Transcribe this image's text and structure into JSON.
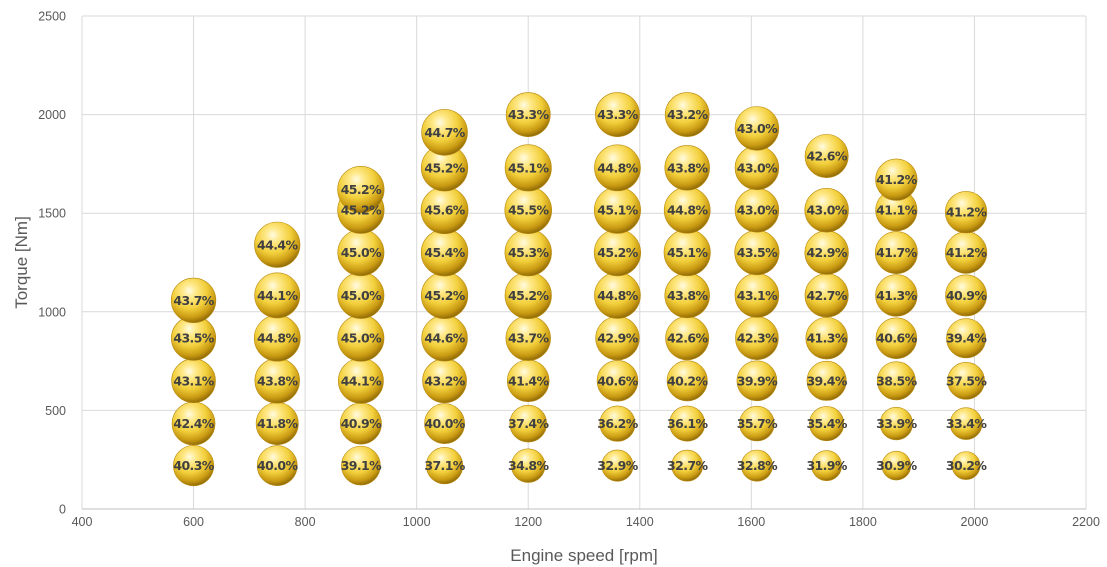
{
  "chart_data": {
    "type": "scatter",
    "title": "",
    "xlabel": "Engine speed [rpm]",
    "ylabel": "Torque [Nm]",
    "xlim": [
      400,
      2200
    ],
    "ylim": [
      0,
      2500
    ],
    "xticks": [
      "400",
      "600",
      "800",
      "1000",
      "1200",
      "1400",
      "1600",
      "1800",
      "2000",
      "2200"
    ],
    "yticks": [
      "0",
      "500",
      "1000",
      "1500",
      "2000",
      "2500"
    ],
    "grid": true,
    "legend": "none",
    "marker_color": "#f2cf3b",
    "points": [
      {
        "x": 600,
        "y": 220,
        "label": "40.3%",
        "value": 40.3
      },
      {
        "x": 600,
        "y": 433,
        "label": "42.4%",
        "value": 42.4
      },
      {
        "x": 600,
        "y": 650,
        "label": "43.1%",
        "value": 43.1
      },
      {
        "x": 600,
        "y": 866,
        "label": "43.5%",
        "value": 43.5
      },
      {
        "x": 600,
        "y": 1058,
        "label": "43.7%",
        "value": 43.7
      },
      {
        "x": 750,
        "y": 220,
        "label": "40.0%",
        "value": 40.0
      },
      {
        "x": 750,
        "y": 433,
        "label": "41.8%",
        "value": 41.8
      },
      {
        "x": 750,
        "y": 650,
        "label": "43.8%",
        "value": 43.8
      },
      {
        "x": 750,
        "y": 866,
        "label": "44.8%",
        "value": 44.8
      },
      {
        "x": 750,
        "y": 1083,
        "label": "44.1%",
        "value": 44.1
      },
      {
        "x": 750,
        "y": 1340,
        "label": "44.4%",
        "value": 44.4
      },
      {
        "x": 900,
        "y": 220,
        "label": "39.1%",
        "value": 39.1
      },
      {
        "x": 900,
        "y": 433,
        "label": "40.9%",
        "value": 40.9
      },
      {
        "x": 900,
        "y": 650,
        "label": "44.1%",
        "value": 44.1
      },
      {
        "x": 900,
        "y": 866,
        "label": "45.0%",
        "value": 45.0
      },
      {
        "x": 900,
        "y": 1083,
        "label": "45.0%",
        "value": 45.0
      },
      {
        "x": 900,
        "y": 1300,
        "label": "45.0%",
        "value": 45.0
      },
      {
        "x": 900,
        "y": 1515,
        "label": "45.2%",
        "value": 45.2
      },
      {
        "x": 900,
        "y": 1620,
        "label": "45.2%",
        "value": 45.2
      },
      {
        "x": 1050,
        "y": 220,
        "label": "37.1%",
        "value": 37.1
      },
      {
        "x": 1050,
        "y": 433,
        "label": "40.0%",
        "value": 40.0
      },
      {
        "x": 1050,
        "y": 650,
        "label": "43.2%",
        "value": 43.2
      },
      {
        "x": 1050,
        "y": 866,
        "label": "44.6%",
        "value": 44.6
      },
      {
        "x": 1050,
        "y": 1083,
        "label": "45.2%",
        "value": 45.2
      },
      {
        "x": 1050,
        "y": 1300,
        "label": "45.4%",
        "value": 45.4
      },
      {
        "x": 1050,
        "y": 1515,
        "label": "45.6%",
        "value": 45.6
      },
      {
        "x": 1050,
        "y": 1730,
        "label": "45.2%",
        "value": 45.2
      },
      {
        "x": 1050,
        "y": 1910,
        "label": "44.7%",
        "value": 44.7
      },
      {
        "x": 1200,
        "y": 220,
        "label": "34.8%",
        "value": 34.8
      },
      {
        "x": 1200,
        "y": 433,
        "label": "37.4%",
        "value": 37.4
      },
      {
        "x": 1200,
        "y": 650,
        "label": "41.4%",
        "value": 41.4
      },
      {
        "x": 1200,
        "y": 866,
        "label": "43.7%",
        "value": 43.7
      },
      {
        "x": 1200,
        "y": 1083,
        "label": "45.2%",
        "value": 45.2
      },
      {
        "x": 1200,
        "y": 1300,
        "label": "45.3%",
        "value": 45.3
      },
      {
        "x": 1200,
        "y": 1515,
        "label": "45.5%",
        "value": 45.5
      },
      {
        "x": 1200,
        "y": 1730,
        "label": "45.1%",
        "value": 45.1
      },
      {
        "x": 1200,
        "y": 2000,
        "label": "43.3%",
        "value": 43.3
      },
      {
        "x": 1360,
        "y": 220,
        "label": "32.9%",
        "value": 32.9
      },
      {
        "x": 1360,
        "y": 433,
        "label": "36.2%",
        "value": 36.2
      },
      {
        "x": 1360,
        "y": 650,
        "label": "40.6%",
        "value": 40.6
      },
      {
        "x": 1360,
        "y": 866,
        "label": "42.9%",
        "value": 42.9
      },
      {
        "x": 1360,
        "y": 1083,
        "label": "44.8%",
        "value": 44.8
      },
      {
        "x": 1360,
        "y": 1300,
        "label": "45.2%",
        "value": 45.2
      },
      {
        "x": 1360,
        "y": 1515,
        "label": "45.1%",
        "value": 45.1
      },
      {
        "x": 1360,
        "y": 1730,
        "label": "44.8%",
        "value": 44.8
      },
      {
        "x": 1360,
        "y": 2000,
        "label": "43.3%",
        "value": 43.3
      },
      {
        "x": 1485,
        "y": 220,
        "label": "32.7%",
        "value": 32.7
      },
      {
        "x": 1485,
        "y": 433,
        "label": "36.1%",
        "value": 36.1
      },
      {
        "x": 1485,
        "y": 650,
        "label": "40.2%",
        "value": 40.2
      },
      {
        "x": 1485,
        "y": 866,
        "label": "42.6%",
        "value": 42.6
      },
      {
        "x": 1485,
        "y": 1083,
        "label": "43.8%",
        "value": 43.8
      },
      {
        "x": 1485,
        "y": 1300,
        "label": "45.1%",
        "value": 45.1
      },
      {
        "x": 1485,
        "y": 1515,
        "label": "44.8%",
        "value": 44.8
      },
      {
        "x": 1485,
        "y": 1730,
        "label": "43.8%",
        "value": 43.8
      },
      {
        "x": 1485,
        "y": 2000,
        "label": "43.2%",
        "value": 43.2
      },
      {
        "x": 1610,
        "y": 220,
        "label": "32.8%",
        "value": 32.8
      },
      {
        "x": 1610,
        "y": 433,
        "label": "35.7%",
        "value": 35.7
      },
      {
        "x": 1610,
        "y": 650,
        "label": "39.9%",
        "value": 39.9
      },
      {
        "x": 1610,
        "y": 866,
        "label": "42.3%",
        "value": 42.3
      },
      {
        "x": 1610,
        "y": 1083,
        "label": "43.1%",
        "value": 43.1
      },
      {
        "x": 1610,
        "y": 1300,
        "label": "43.5%",
        "value": 43.5
      },
      {
        "x": 1610,
        "y": 1515,
        "label": "43.0%",
        "value": 43.0
      },
      {
        "x": 1610,
        "y": 1730,
        "label": "43.0%",
        "value": 43.0
      },
      {
        "x": 1610,
        "y": 1930,
        "label": "43.0%",
        "value": 43.0
      },
      {
        "x": 1735,
        "y": 220,
        "label": "31.9%",
        "value": 31.9
      },
      {
        "x": 1735,
        "y": 433,
        "label": "35.4%",
        "value": 35.4
      },
      {
        "x": 1735,
        "y": 650,
        "label": "39.4%",
        "value": 39.4
      },
      {
        "x": 1735,
        "y": 866,
        "label": "41.3%",
        "value": 41.3
      },
      {
        "x": 1735,
        "y": 1083,
        "label": "42.7%",
        "value": 42.7
      },
      {
        "x": 1735,
        "y": 1300,
        "label": "42.9%",
        "value": 42.9
      },
      {
        "x": 1735,
        "y": 1515,
        "label": "43.0%",
        "value": 43.0
      },
      {
        "x": 1735,
        "y": 1790,
        "label": "42.6%",
        "value": 42.6
      },
      {
        "x": 1860,
        "y": 220,
        "label": "30.9%",
        "value": 30.9
      },
      {
        "x": 1860,
        "y": 433,
        "label": "33.9%",
        "value": 33.9
      },
      {
        "x": 1860,
        "y": 650,
        "label": "38.5%",
        "value": 38.5
      },
      {
        "x": 1860,
        "y": 866,
        "label": "40.6%",
        "value": 40.6
      },
      {
        "x": 1860,
        "y": 1083,
        "label": "41.3%",
        "value": 41.3
      },
      {
        "x": 1860,
        "y": 1300,
        "label": "41.7%",
        "value": 41.7
      },
      {
        "x": 1860,
        "y": 1515,
        "label": "41.1%",
        "value": 41.1
      },
      {
        "x": 1860,
        "y": 1670,
        "label": "41.2%",
        "value": 41.2
      },
      {
        "x": 1985,
        "y": 220,
        "label": "30.2%",
        "value": 30.2
      },
      {
        "x": 1985,
        "y": 433,
        "label": "33.4%",
        "value": 33.4
      },
      {
        "x": 1985,
        "y": 650,
        "label": "37.5%",
        "value": 37.5
      },
      {
        "x": 1985,
        "y": 866,
        "label": "39.4%",
        "value": 39.4
      },
      {
        "x": 1985,
        "y": 1083,
        "label": "40.9%",
        "value": 40.9
      },
      {
        "x": 1985,
        "y": 1300,
        "label": "41.2%",
        "value": 41.2
      },
      {
        "x": 1985,
        "y": 1505,
        "label": "41.2%",
        "value": 41.2
      }
    ]
  }
}
